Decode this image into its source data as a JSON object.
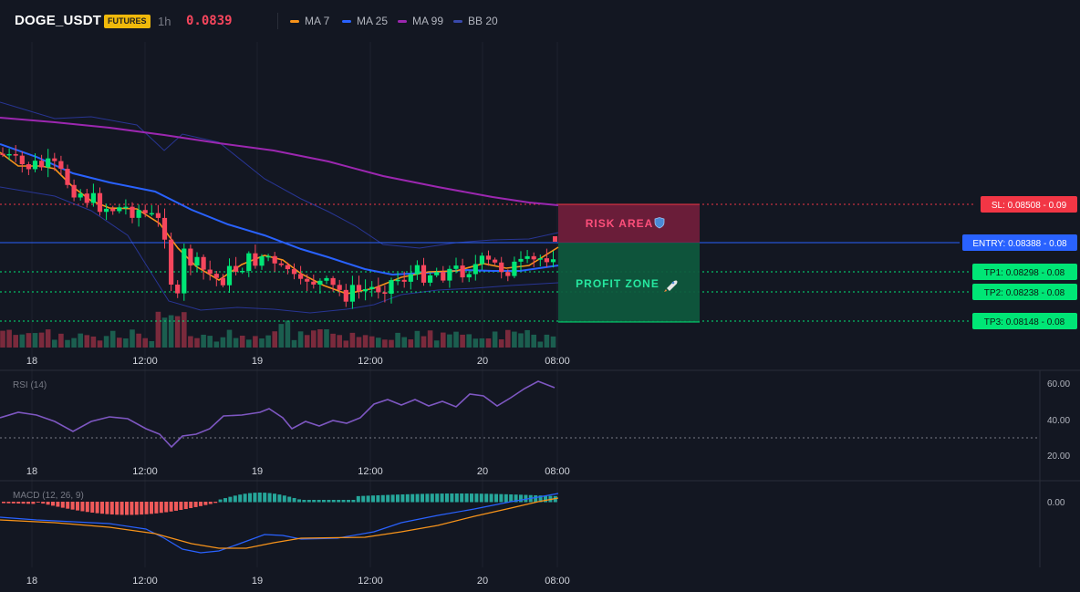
{
  "header": {
    "symbol": "DOGE_USDT",
    "badge": "FUTURES",
    "timeframe": "1h",
    "price": "0.0839",
    "legend": [
      {
        "label": "MA 7",
        "color": "#f7931a"
      },
      {
        "label": "MA 25",
        "color": "#2962ff"
      },
      {
        "label": "MA 99",
        "color": "#9c27b0"
      },
      {
        "label": "BB 20",
        "color": "#283593"
      }
    ]
  },
  "time_axis": [
    "18",
    "12:00",
    "19",
    "12:00",
    "20",
    "08:00"
  ],
  "levels": {
    "sl": {
      "label": "SL: 0.08508",
      "value": "0.09",
      "color": "#f23645"
    },
    "entry": {
      "label": "ENTRY: 0.08388",
      "value": "0.08",
      "color": "#2962ff"
    },
    "tp1": {
      "label": "TP1: 0.08298",
      "value": "0.08",
      "color": "#00e676"
    },
    "tp2": {
      "label": "TP2: 0.08238",
      "value": "0.08",
      "color": "#00e676"
    },
    "tp3": {
      "label": "TP3: 0.08148",
      "value": "0.08",
      "color": "#00e676"
    }
  },
  "zones": {
    "risk": "RISK AREA",
    "profit": "PROFIT ZONE"
  },
  "rsi": {
    "label": "RSI (14)",
    "ticks": [
      "60.00",
      "40.00",
      "20.00"
    ]
  },
  "macd": {
    "label": "MACD (12, 26, 9)",
    "ticks": [
      "0.00"
    ]
  },
  "chart_data": {
    "type": "line",
    "title": "",
    "x": [
      "18",
      "12:00",
      "19",
      "12:00",
      "20",
      "08:00"
    ],
    "series": [
      {
        "name": "MA 7"
      },
      {
        "name": "MA 25"
      },
      {
        "name": "MA 99"
      },
      {
        "name": "BB 20"
      }
    ],
    "price_levels": {
      "sl": 0.08508,
      "entry": 0.08388,
      "tp1": 0.08298,
      "tp2": 0.08238,
      "tp3": 0.08148
    },
    "rsi_range": [
      20,
      60
    ]
  }
}
